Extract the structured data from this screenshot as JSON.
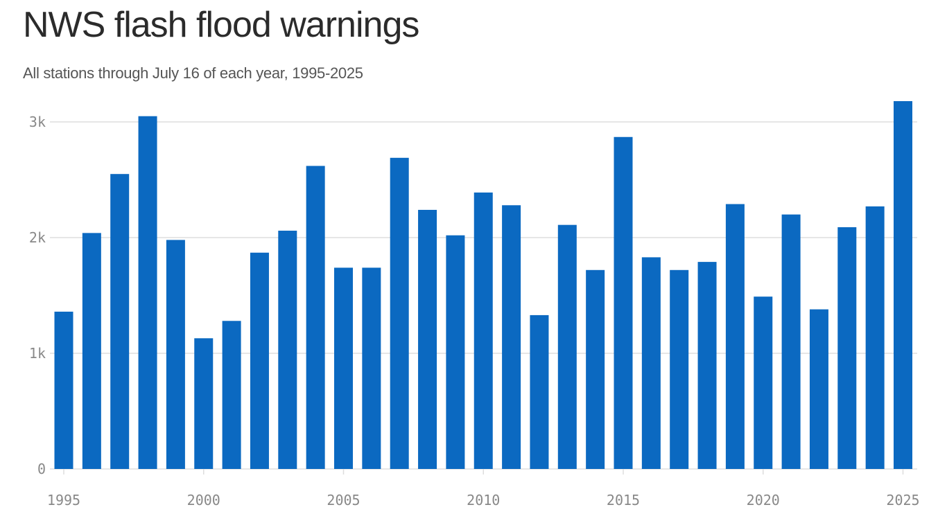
{
  "chart_data": {
    "type": "bar",
    "title": "NWS flash flood warnings",
    "subtitle": "All stations through July 16 of each year, 1995-2025",
    "xlabel": "",
    "ylabel": "",
    "categories": [
      1995,
      1996,
      1997,
      1998,
      1999,
      2000,
      2001,
      2002,
      2003,
      2004,
      2005,
      2006,
      2007,
      2008,
      2009,
      2010,
      2011,
      2012,
      2013,
      2014,
      2015,
      2016,
      2017,
      2018,
      2019,
      2020,
      2021,
      2022,
      2023,
      2024,
      2025
    ],
    "values": [
      1360,
      2040,
      2550,
      3050,
      1980,
      1130,
      1280,
      1870,
      2060,
      2620,
      1740,
      1740,
      2690,
      2240,
      2020,
      2390,
      2280,
      1330,
      2110,
      1720,
      2870,
      1830,
      1720,
      1790,
      2290,
      1490,
      2200,
      1380,
      2090,
      2270,
      3180
    ],
    "ylim": [
      0,
      3180
    ],
    "yticks": [
      0,
      1000,
      2000,
      3000
    ],
    "ytick_labels": [
      "0",
      "1k",
      "2k",
      "3k"
    ],
    "xticks": [
      1995,
      2000,
      2005,
      2010,
      2015,
      2020,
      2025
    ],
    "xtick_labels": [
      "1995",
      "2000",
      "2005",
      "2010",
      "2015",
      "2020",
      "2025"
    ],
    "grid": true,
    "bar_color": "#0b69c1",
    "grid_color": "#dddddd",
    "text_color": "#2b2b2b"
  }
}
